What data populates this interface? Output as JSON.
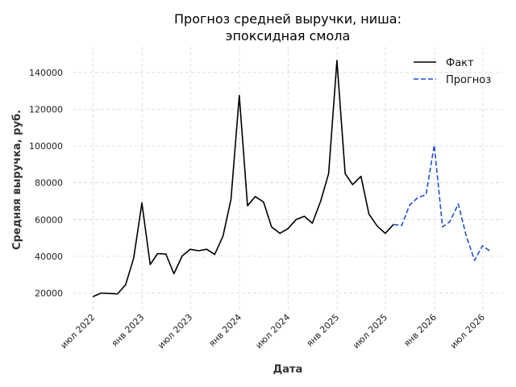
{
  "chart_data": {
    "type": "line",
    "title_line1": "Прогноз средней выручки, ниша:",
    "title_line2": "эпоксидная смола",
    "xlabel": "Дата",
    "ylabel": "Средняя выручка, руб.",
    "ylim": [
      11000,
      154000
    ],
    "xlim": [
      "2022-04-15",
      "2026-09-15"
    ],
    "y_ticks": [
      20000,
      40000,
      60000,
      80000,
      100000,
      120000,
      140000
    ],
    "x_ticks": [
      {
        "date": "2022-07-01",
        "label": "июл 2022"
      },
      {
        "date": "2023-01-01",
        "label": "янв 2023"
      },
      {
        "date": "2023-07-01",
        "label": "июл 2023"
      },
      {
        "date": "2024-01-01",
        "label": "янв 2024"
      },
      {
        "date": "2024-07-01",
        "label": "июл 2024"
      },
      {
        "date": "2025-01-01",
        "label": "янв 2025"
      },
      {
        "date": "2025-07-01",
        "label": "июл 2025"
      },
      {
        "date": "2026-01-01",
        "label": "янв 2026"
      },
      {
        "date": "2026-07-01",
        "label": "июл 2026"
      }
    ],
    "grid": true,
    "legend_position": "top-right",
    "series": [
      {
        "name": "Факт",
        "color": "#000000",
        "dash": "solid",
        "x": [
          "2022-06-30",
          "2022-07-31",
          "2022-08-31",
          "2022-09-30",
          "2022-10-31",
          "2022-11-30",
          "2022-12-31",
          "2023-01-31",
          "2023-02-28",
          "2023-03-31",
          "2023-04-30",
          "2023-05-31",
          "2023-06-30",
          "2023-07-31",
          "2023-08-31",
          "2023-09-30",
          "2023-10-31",
          "2023-11-30",
          "2023-12-31",
          "2024-01-31",
          "2024-02-29",
          "2024-03-31",
          "2024-04-30",
          "2024-05-31",
          "2024-06-30",
          "2024-07-31",
          "2024-08-31",
          "2024-09-30",
          "2024-10-31",
          "2024-11-30",
          "2024-12-31",
          "2025-01-31",
          "2025-02-28",
          "2025-03-31",
          "2025-04-30",
          "2025-05-31",
          "2025-06-30",
          "2025-07-31"
        ],
        "values": [
          18000,
          20000,
          19800,
          19500,
          24500,
          39000,
          69000,
          35500,
          41500,
          41200,
          30500,
          40200,
          43800,
          43000,
          43800,
          41000,
          51000,
          71000,
          127500,
          67500,
          72500,
          69500,
          56000,
          52500,
          55000,
          60000,
          61800,
          58000,
          70000,
          85000,
          146500,
          85000,
          79000,
          83500,
          63000,
          56500,
          52500,
          57300
        ]
      },
      {
        "name": "Прогноз",
        "color": "#1f4fd1",
        "dash": "dashed",
        "x": [
          "2025-07-31",
          "2025-08-31",
          "2025-09-30",
          "2025-10-31",
          "2025-11-30",
          "2025-12-31",
          "2026-01-31",
          "2026-02-28",
          "2026-03-31",
          "2026-04-30",
          "2026-05-31",
          "2026-06-30",
          "2026-07-31"
        ],
        "values": [
          57300,
          56800,
          68000,
          72000,
          73500,
          100500,
          56000,
          59000,
          68500,
          51000,
          37800,
          45800,
          42500
        ]
      }
    ]
  }
}
